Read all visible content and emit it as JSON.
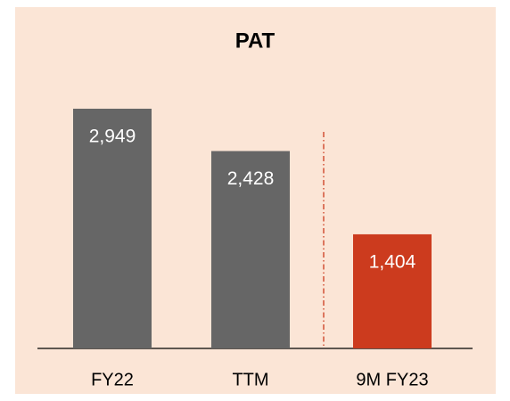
{
  "chart_data": {
    "type": "bar",
    "title": "PAT",
    "categories": [
      "FY22",
      "TTM",
      "9M FY23"
    ],
    "values": [
      2949,
      2428,
      1404
    ],
    "value_labels": [
      "2,949",
      "2,428",
      "1,404"
    ],
    "colors": [
      "#666666",
      "#666666",
      "#cc3b1e"
    ]
  }
}
